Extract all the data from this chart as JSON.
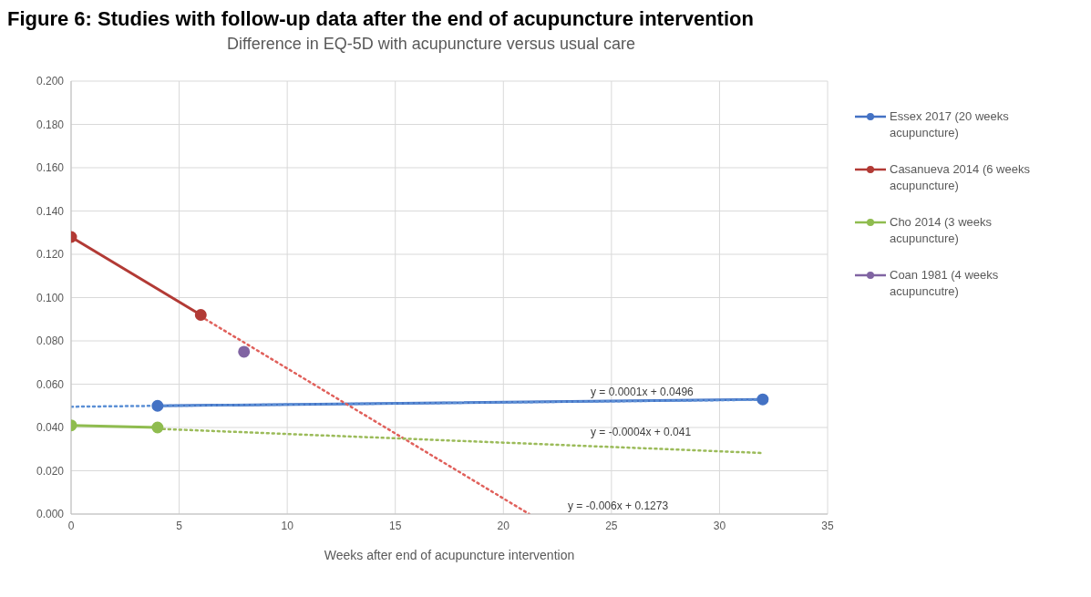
{
  "chart_data": {
    "type": "line",
    "title": "Figure 6: Studies with follow-up data after the end of acupuncture intervention",
    "subtitle": "Difference in EQ-5D with acupuncture versus usual care",
    "xlabel": "Weeks after end of acupuncture intervention",
    "xlim": [
      0,
      35
    ],
    "xticks": [
      0,
      5,
      10,
      15,
      20,
      25,
      30,
      35
    ],
    "ylim": [
      0,
      0.2
    ],
    "yticks": [
      {
        "value": 0,
        "label": "0.000"
      },
      {
        "value": 0.02,
        "label": "0.020"
      },
      {
        "value": 0.04,
        "label": "0.040"
      },
      {
        "value": 0.06,
        "label": "0.060"
      },
      {
        "value": 0.08,
        "label": "0.080"
      },
      {
        "value": 0.1,
        "label": "0.100"
      },
      {
        "value": 0.12,
        "label": "0.120"
      },
      {
        "value": 0.14,
        "label": "0.140"
      },
      {
        "value": 0.16,
        "label": "0.160"
      },
      {
        "value": 0.18,
        "label": "0.180"
      },
      {
        "value": 0.2,
        "label": "0.200"
      }
    ],
    "grid": true,
    "legend": "right",
    "marker": "circle",
    "line_style": "solid",
    "series": [
      {
        "name": "Essex 2017 (20 weeks acupuncture)",
        "color": "#4472c4",
        "x": [
          4,
          32
        ],
        "values": [
          0.05,
          0.053
        ]
      },
      {
        "name": "Casanueva 2014 (6 weeks acupuncture)",
        "color": "#b23a35",
        "x": [
          0,
          6
        ],
        "values": [
          0.128,
          0.092
        ]
      },
      {
        "name": "Cho 2014 (3 weeks acupuncture)",
        "color": "#8fbc4f",
        "x": [
          0,
          4
        ],
        "values": [
          0.041,
          0.04
        ]
      },
      {
        "name": "Coan 1981 (4 weeks acupuncutre)",
        "color": "#8064a2",
        "x": [
          8
        ],
        "values": [
          0.075
        ]
      },
      {
        "type": "line",
        "color": "#5b8fd5",
        "marker": "none",
        "line_style": "dotted",
        "x": [
          0,
          32
        ],
        "values": [
          0.0496,
          0.0528
        ]
      },
      {
        "type": "line",
        "color": "#e0605b",
        "marker": "none",
        "line_style": "dotted",
        "x": [
          6,
          21.2
        ],
        "values": [
          0.0913,
          0
        ]
      },
      {
        "type": "line",
        "color": "#9bbb59",
        "marker": "none",
        "line_style": "dotted",
        "x": [
          4,
          32
        ],
        "values": [
          0.0394,
          0.0282
        ]
      }
    ],
    "annotations": [
      "y = 0.0001x + 0.0496",
      "y = -0.0004x + 0.041",
      "y = -0.006x + 0.1273"
    ]
  }
}
